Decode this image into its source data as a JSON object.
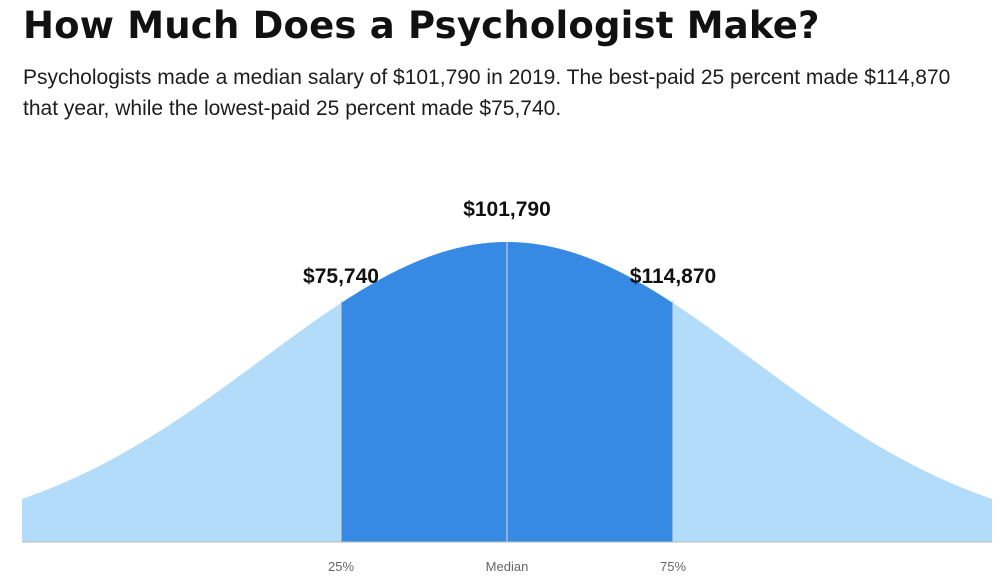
{
  "header": {
    "title": "How Much Does a Psychologist Make?",
    "subtitle": "Psychologists made a median salary of $101,790 in 2019. The best-paid 25 percent made $114,870 that year, while the lowest-paid 25 percent made $75,740."
  },
  "colors": {
    "middle_band": "#368ae4",
    "tails": "#b3dcfa",
    "marker_line": "#d9d9d9",
    "baseline": "#bbbbbb"
  },
  "chart_data": {
    "type": "area",
    "title": "How Much Does a Psychologist Make?",
    "xlabel": "",
    "ylabel": "",
    "grid": false,
    "markers": [
      {
        "percentile": 25,
        "tick": "25%",
        "value_label": "$75,740",
        "value": 75740
      },
      {
        "percentile": 50,
        "tick": "Median",
        "value_label": "$101,790",
        "value": 101790
      },
      {
        "percentile": 75,
        "tick": "75%",
        "value_label": "$114,870",
        "value": 114870
      }
    ],
    "shaded_band": {
      "from_percentile": 25,
      "to_percentile": 75
    }
  }
}
